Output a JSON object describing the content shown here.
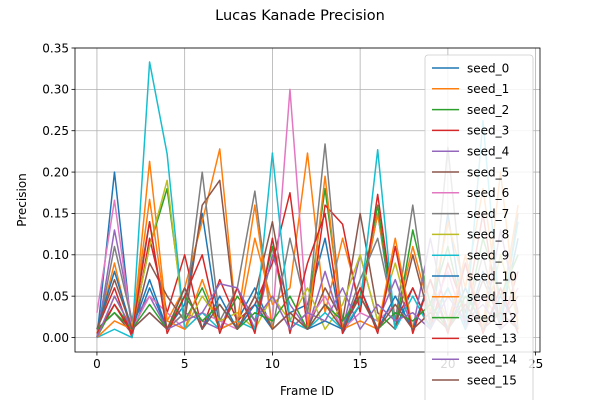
{
  "figure": {
    "title": "Lucas Kanade Precision"
  },
  "chart_data": {
    "type": "line",
    "title": "Lucas Kanade Precision",
    "xlabel": "Frame ID",
    "ylabel": "Precision",
    "xlim": [
      -1.25,
      25.25
    ],
    "ylim": [
      -0.0175,
      0.35
    ],
    "xticks": [
      0,
      5,
      10,
      15,
      20,
      25
    ],
    "xtick_labels": [
      "0",
      "5",
      "10",
      "15",
      "20",
      "25"
    ],
    "yticks": [
      0.0,
      0.05,
      0.1,
      0.15,
      0.2,
      0.25,
      0.3,
      0.35
    ],
    "ytick_labels": [
      "0.00",
      "0.05",
      "0.10",
      "0.15",
      "0.20",
      "0.25",
      "0.30",
      "0.35"
    ],
    "grid": true,
    "legend_position": "upper-right",
    "x": [
      0,
      1,
      2,
      3,
      4,
      5,
      6,
      7,
      8,
      9,
      10,
      11,
      12,
      13,
      14,
      15,
      16,
      17,
      18,
      19,
      20,
      21,
      22,
      23,
      24
    ],
    "series": [
      {
        "name": "seed_0",
        "color": "#1f77b4",
        "values": [
          0.0,
          0.2,
          0.005,
          0.06,
          0.01,
          0.04,
          0.15,
          0.01,
          0.02,
          0.06,
          0.01,
          0.03,
          0.04,
          0.12,
          0.005,
          0.04,
          0.15,
          0.01,
          0.06,
          0.01,
          0.15,
          0.01,
          0.08,
          0.02,
          0.12
        ]
      },
      {
        "name": "seed_1",
        "color": "#ff7f0e",
        "values": [
          0.005,
          0.09,
          0.0,
          0.213,
          0.02,
          0.06,
          0.14,
          0.228,
          0.01,
          0.12,
          0.04,
          0.06,
          0.223,
          0.03,
          0.12,
          0.04,
          0.15,
          0.02,
          0.11,
          0.03,
          0.14,
          0.06,
          0.18,
          0.03,
          0.16
        ]
      },
      {
        "name": "seed_2",
        "color": "#2ca02c",
        "values": [
          0.0,
          0.04,
          0.01,
          0.11,
          0.18,
          0.02,
          0.06,
          0.01,
          0.05,
          0.02,
          0.11,
          0.01,
          0.03,
          0.18,
          0.02,
          0.05,
          0.16,
          0.01,
          0.13,
          0.04,
          0.11,
          0.02,
          0.12,
          0.05,
          0.1
        ]
      },
      {
        "name": "seed_3",
        "color": "#d62728",
        "values": [
          0.01,
          0.06,
          0.0,
          0.12,
          0.03,
          0.1,
          0.01,
          0.07,
          0.02,
          0.04,
          0.09,
          0.175,
          0.01,
          0.16,
          0.137,
          0.03,
          0.173,
          0.02,
          0.06,
          0.01,
          0.09,
          0.03,
          0.15,
          0.01,
          0.08
        ]
      },
      {
        "name": "seed_4",
        "color": "#9467bd",
        "values": [
          0.0,
          0.13,
          0.02,
          0.05,
          0.01,
          0.03,
          0.02,
          0.01,
          0.06,
          0.01,
          0.1,
          0.04,
          0.01,
          0.08,
          0.01,
          0.1,
          0.02,
          0.07,
          0.01,
          0.12,
          0.02,
          0.09,
          0.01,
          0.13,
          0.03
        ]
      },
      {
        "name": "seed_5",
        "color": "#8c564b",
        "values": [
          0.01,
          0.03,
          0.005,
          0.09,
          0.05,
          0.02,
          0.16,
          0.19,
          0.01,
          0.05,
          0.14,
          0.02,
          0.01,
          0.06,
          0.02,
          0.15,
          0.03,
          0.01,
          0.1,
          0.02,
          0.06,
          0.01,
          0.07,
          0.02,
          0.05
        ]
      },
      {
        "name": "seed_6",
        "color": "#e377c2",
        "values": [
          0.03,
          0.166,
          0.01,
          0.05,
          0.03,
          0.01,
          0.03,
          0.02,
          0.01,
          0.04,
          0.02,
          0.3,
          0.02,
          0.05,
          0.01,
          0.03,
          0.02,
          0.04,
          0.01,
          0.03,
          0.08,
          0.01,
          0.05,
          0.02,
          0.06
        ]
      },
      {
        "name": "seed_7",
        "color": "#7f7f7f",
        "values": [
          0.0,
          0.11,
          0.02,
          0.14,
          0.01,
          0.03,
          0.2,
          0.02,
          0.06,
          0.177,
          0.01,
          0.12,
          0.03,
          0.234,
          0.01,
          0.07,
          0.12,
          0.02,
          0.16,
          0.01,
          0.23,
          0.02,
          0.1,
          0.01,
          0.15
        ]
      },
      {
        "name": "seed_8",
        "color": "#bcbd22",
        "values": [
          0.0,
          0.05,
          0.01,
          0.11,
          0.19,
          0.01,
          0.05,
          0.02,
          0.03,
          0.01,
          0.05,
          0.02,
          0.06,
          0.01,
          0.04,
          0.1,
          0.02,
          0.09,
          0.01,
          0.07,
          0.02,
          0.06,
          0.01,
          0.1,
          0.02
        ]
      },
      {
        "name": "seed_9",
        "color": "#17becf",
        "values": [
          0.0,
          0.01,
          0.0,
          0.333,
          0.222,
          0.01,
          0.03,
          0.01,
          0.02,
          0.01,
          0.223,
          0.02,
          0.01,
          0.03,
          0.01,
          0.04,
          0.227,
          0.01,
          0.05,
          0.01,
          0.06,
          0.01,
          0.262,
          0.02,
          0.14
        ]
      },
      {
        "name": "seed_10",
        "color": "#1f77b4",
        "values": [
          0.01,
          0.08,
          0.01,
          0.07,
          0.01,
          0.06,
          0.01,
          0.05,
          0.01,
          0.04,
          0.01,
          0.03,
          0.01,
          0.02,
          0.01,
          0.06,
          0.01,
          0.05,
          0.01,
          0.07,
          0.01,
          0.06,
          0.01,
          0.05,
          0.01
        ]
      },
      {
        "name": "seed_11",
        "color": "#ff7f0e",
        "values": [
          0.0,
          0.02,
          0.01,
          0.167,
          0.02,
          0.01,
          0.07,
          0.01,
          0.02,
          0.16,
          0.01,
          0.03,
          0.01,
          0.195,
          0.01,
          0.02,
          0.01,
          0.12,
          0.01,
          0.03,
          0.01,
          0.1,
          0.01,
          0.2,
          0.01
        ]
      },
      {
        "name": "seed_12",
        "color": "#2ca02c",
        "values": [
          0.01,
          0.03,
          0.01,
          0.04,
          0.01,
          0.05,
          0.02,
          0.04,
          0.01,
          0.03,
          0.02,
          0.05,
          0.01,
          0.04,
          0.02,
          0.05,
          0.01,
          0.03,
          0.02,
          0.04,
          0.01,
          0.05,
          0.02,
          0.03,
          0.01
        ]
      },
      {
        "name": "seed_13",
        "color": "#d62728",
        "values": [
          0.005,
          0.04,
          0.005,
          0.14,
          0.005,
          0.05,
          0.1,
          0.005,
          0.06,
          0.005,
          0.12,
          0.005,
          0.09,
          0.15,
          0.005,
          0.06,
          0.005,
          0.11,
          0.005,
          0.07,
          0.005,
          0.09,
          0.005,
          0.06,
          0.005
        ]
      },
      {
        "name": "seed_14",
        "color": "#9467bd",
        "values": [
          0.0,
          0.05,
          0.01,
          0.03,
          0.01,
          0.02,
          0.03,
          0.065,
          0.06,
          0.02,
          0.05,
          0.01,
          0.03,
          0.02,
          0.06,
          0.01,
          0.04,
          0.02,
          0.03,
          0.01,
          0.05,
          0.02,
          0.04,
          0.01,
          0.03
        ]
      },
      {
        "name": "seed_15",
        "color": "#8c564b",
        "values": [
          0.01,
          0.07,
          0.01,
          0.03,
          0.01,
          0.06,
          0.01,
          0.04,
          0.01,
          0.05,
          0.01,
          0.03,
          0.01,
          0.04,
          0.01,
          0.05,
          0.01,
          0.04,
          0.01,
          0.03,
          0.01,
          0.04,
          0.01,
          0.03,
          0.01
        ]
      }
    ],
    "legend_visible_items": [
      "seed_0",
      "seed_1",
      "seed_2",
      "seed_3",
      "seed_4",
      "seed_5",
      "seed_6",
      "seed_7",
      "seed_8",
      "seed_9",
      "seed_10",
      "seed_11",
      "seed_12",
      "seed_13",
      "seed_14",
      "seed_15"
    ]
  }
}
